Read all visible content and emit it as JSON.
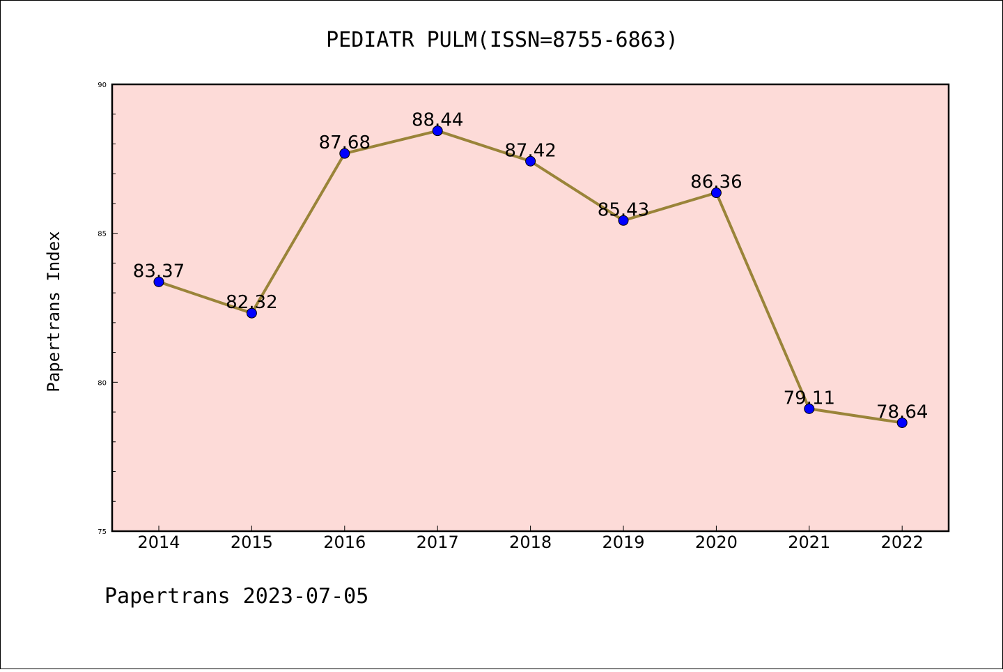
{
  "chart_data": {
    "type": "line",
    "title": "PEDIATR PULM(ISSN=8755-6863)",
    "xlabel": "",
    "ylabel": "Papertrans Index",
    "categories": [
      "2014",
      "2015",
      "2016",
      "2017",
      "2018",
      "2019",
      "2020",
      "2021",
      "2022"
    ],
    "series": [
      {
        "values": [
          83.37,
          82.32,
          87.68,
          88.44,
          87.42,
          85.43,
          86.36,
          79.11,
          78.64
        ],
        "labels": [
          "83.37",
          "82.32",
          "87.68",
          "88.44",
          "87.42",
          "85.43",
          "86.36",
          "79.11",
          "78.64"
        ]
      }
    ],
    "ylim": [
      75,
      90
    ],
    "yticks": [
      "75",
      "80",
      "85",
      "90"
    ],
    "grid": false,
    "colors": {
      "plot_background": "#fddbd8",
      "line": "#9a8439",
      "marker": "#0000ff"
    }
  },
  "footer": {
    "text": "Papertrans 2023-07-05"
  }
}
